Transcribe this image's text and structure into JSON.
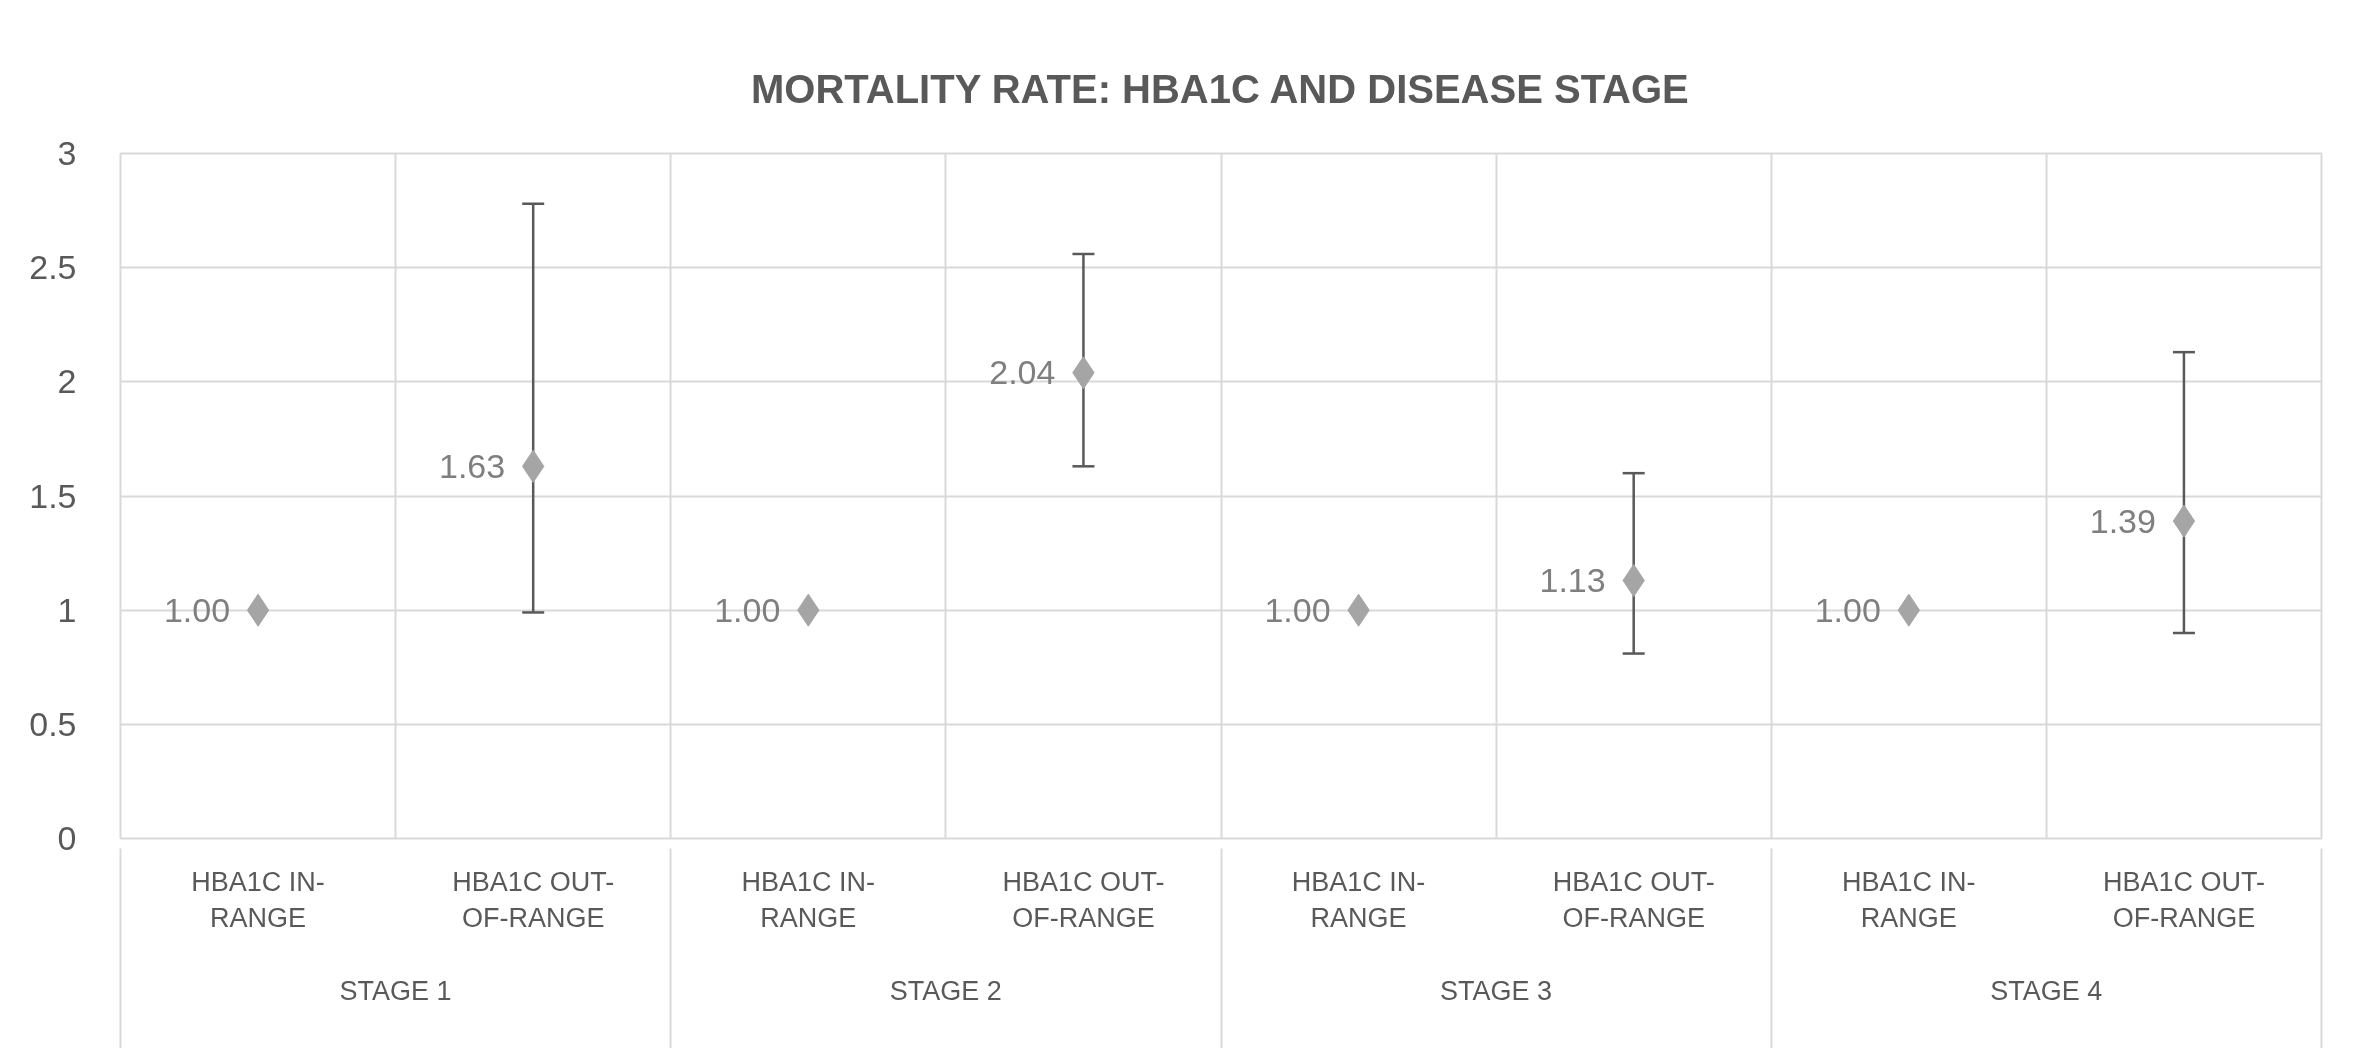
{
  "chart_data": {
    "type": "scatter",
    "title": "MORTALITY RATE: HBA1C AND DISEASE STAGE",
    "categories": [
      "HBA1C IN-RANGE",
      "HBA1C OUT-OF-RANGE",
      "HBA1C IN-RANGE",
      "HBA1C OUT-OF-RANGE",
      "HBA1C IN-RANGE",
      "HBA1C OUT-OF-RANGE",
      "HBA1C IN-RANGE",
      "HBA1C OUT-OF-RANGE"
    ],
    "values": [
      1.0,
      1.63,
      1.0,
      2.04,
      1.0,
      1.13,
      1.0,
      1.39
    ],
    "value_labels": [
      "1.00",
      "1.63",
      "1.00",
      "2.04",
      "1.00",
      "1.13",
      "1.00",
      "1.39"
    ],
    "errors": [
      null,
      [
        0.99,
        2.78
      ],
      null,
      [
        1.63,
        2.56
      ],
      null,
      [
        0.81,
        1.6
      ],
      null,
      [
        0.9,
        2.13
      ]
    ],
    "color": "#a5a5a5",
    "marker": "diamond",
    "ylim": [
      0,
      3
    ],
    "yticks": [
      0,
      0.5,
      1,
      1.5,
      2,
      2.5,
      3
    ],
    "grid": true,
    "annotations": [
      "STAGE 1",
      "STAGE 2",
      "STAGE 3",
      "STAGE 4"
    ]
  }
}
